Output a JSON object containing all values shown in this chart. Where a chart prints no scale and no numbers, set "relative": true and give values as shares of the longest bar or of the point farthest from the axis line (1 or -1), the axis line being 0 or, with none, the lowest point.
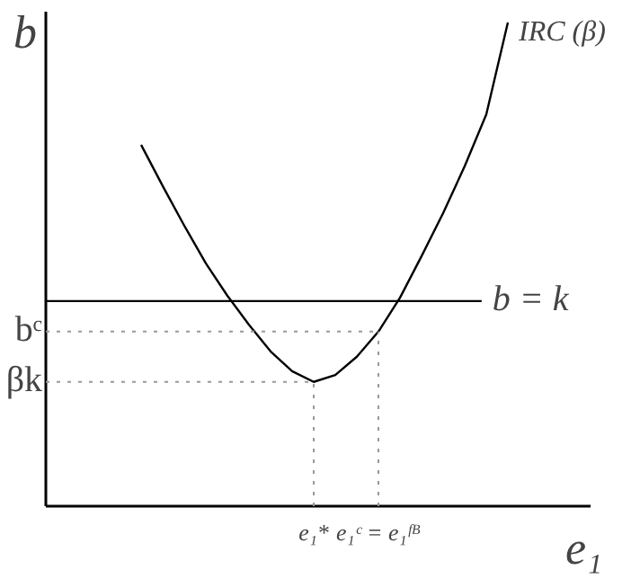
{
  "chart_data": {
    "type": "line",
    "relative": true,
    "xlabel": "e₁",
    "ylabel": "b",
    "grid": false,
    "categories": [
      null,
      null,
      null,
      null,
      null,
      null,
      null,
      null,
      "e₁*",
      null,
      null,
      "e₁ᶜ = e₁ᶠᴮ",
      null,
      null,
      null,
      null,
      null,
      null
    ],
    "series": [
      {
        "name": "IRC (β)",
        "color": "#000000",
        "values": [
          0.747,
          0.662,
          0.58,
          0.502,
          0.435,
          0.375,
          0.32,
          0.279,
          0.257,
          0.271,
          0.309,
          0.361,
          0.431,
          0.517,
          0.606,
          0.703,
          0.81,
          1.0
        ]
      }
    ],
    "ref_lines": [
      {
        "axis": "y",
        "value": 0.424,
        "label": "b = k",
        "color": "#000000",
        "line_style": "solid"
      },
      {
        "axis": "y",
        "value": 0.361,
        "label": "bᶜ",
        "color": "#999999",
        "line_style": "dotted"
      },
      {
        "axis": "y",
        "value": 0.257,
        "label": "βk",
        "color": "#999999",
        "line_style": "dotted"
      },
      {
        "axis": "x",
        "value": "e₁*",
        "color": "#999999",
        "line_style": "dotted"
      },
      {
        "axis": "x",
        "value": "e₁ᶜ = e₁ᶠᴮ",
        "color": "#999999",
        "line_style": "dotted"
      }
    ]
  }
}
